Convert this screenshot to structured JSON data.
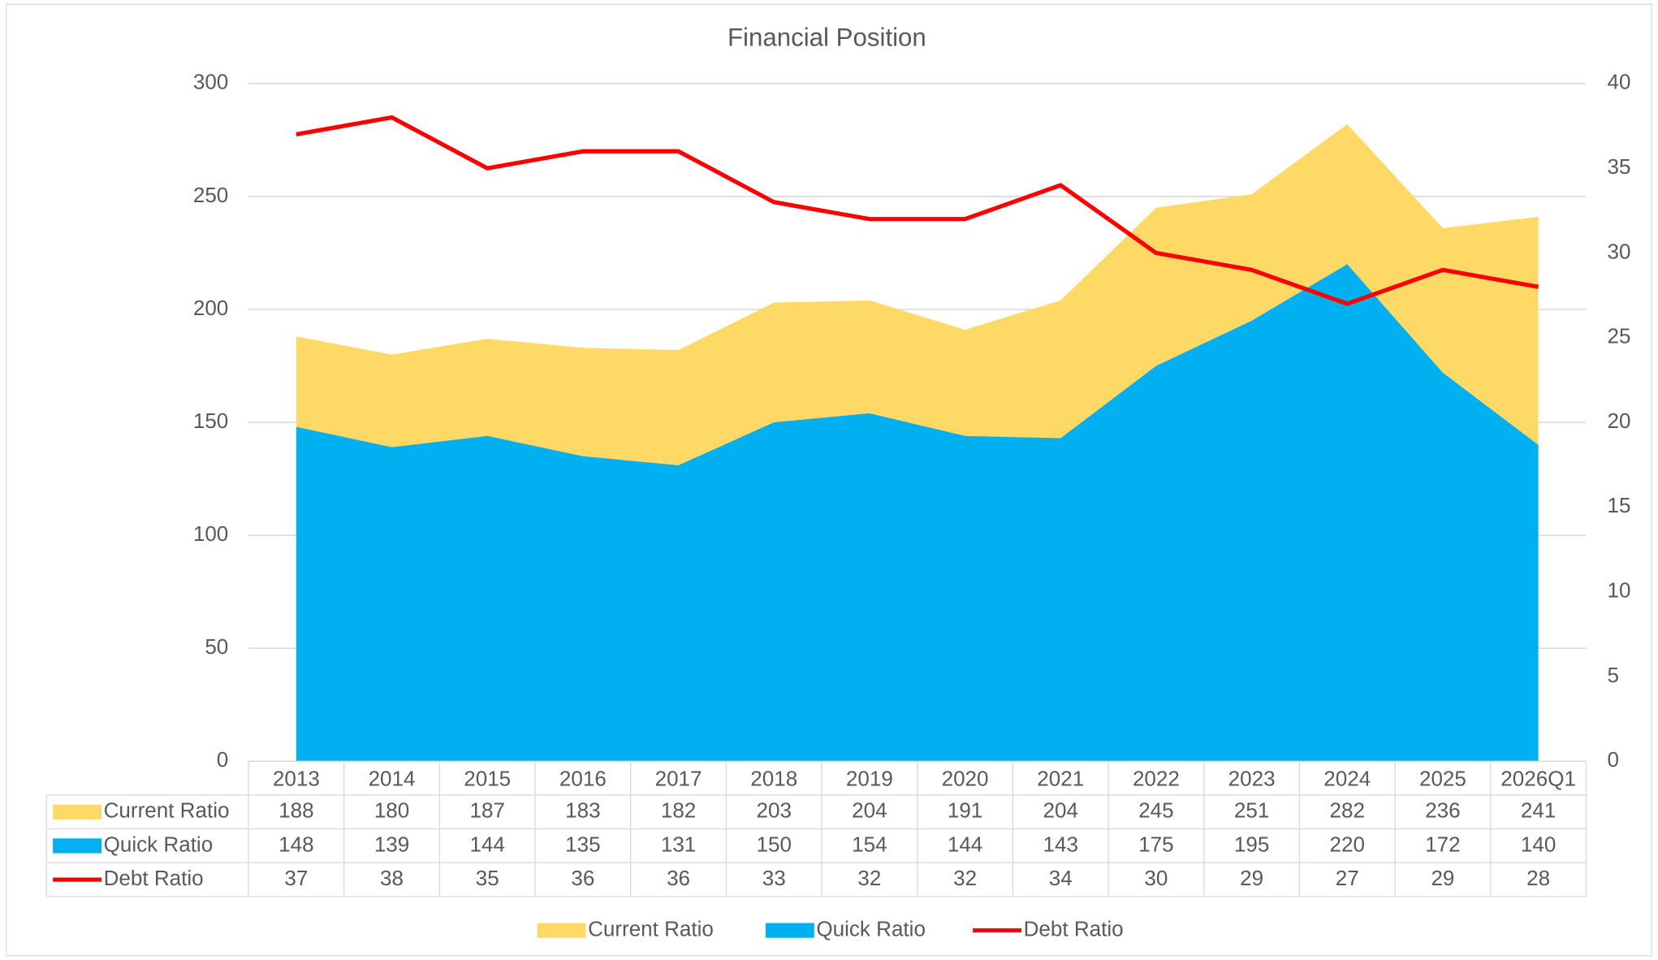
{
  "chart_data": {
    "type": "area",
    "title": "Financial Position",
    "categories": [
      "2013",
      "2014",
      "2015",
      "2016",
      "2017",
      "2018",
      "2019",
      "2020",
      "2021",
      "2022",
      "2023",
      "2024",
      "2025",
      "2026Q1"
    ],
    "series": [
      {
        "name": "Current Ratio",
        "color": "#ffd966",
        "values": [
          188,
          180,
          187,
          183,
          182,
          203,
          204,
          191,
          204,
          245,
          251,
          282,
          236,
          241
        ]
      },
      {
        "name": "Quick Ratio",
        "color": "#00b0f0",
        "values": [
          148,
          139,
          144,
          135,
          131,
          150,
          154,
          144,
          143,
          175,
          195,
          220,
          172,
          140
        ]
      },
      {
        "name": "Debt Ratio",
        "color": "#ff0000",
        "axis": "y2",
        "values": [
          37,
          38,
          35,
          36,
          36,
          33,
          32,
          32,
          34,
          30,
          29,
          27,
          29,
          28
        ]
      }
    ],
    "ylim": [
      0,
      300
    ],
    "yticks": [
      0,
      50,
      100,
      150,
      200,
      250,
      300
    ],
    "y2lim": [
      0,
      40
    ],
    "y2ticks": [
      0,
      5,
      10,
      15,
      20,
      25,
      30,
      35,
      40
    ],
    "grid": true,
    "legend": "bottom",
    "data_table": true
  }
}
